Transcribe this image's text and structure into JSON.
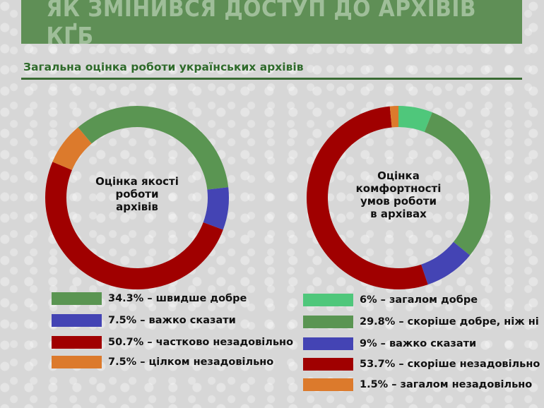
{
  "header": {
    "title": "ЯК ЗМІНИВСЯ ДОСТУП ДО АРХІВІВ КҐБ",
    "subtitle": "Загальна оцінка роботи українських архівів"
  },
  "chart_data": [
    {
      "type": "pie",
      "title": "Оцінка якості роботи архівів",
      "title_lines": [
        "Оцінка якості",
        "роботи",
        "архівів"
      ],
      "start_angle_deg": -40,
      "slices": [
        {
          "label": "34.3% – швидше добре",
          "value": 34.3,
          "color": "#5a9552"
        },
        {
          "label": "7.5% – важко сказати",
          "value": 7.5,
          "color": "#4444b4"
        },
        {
          "label": "50.7% – частково незадовільно",
          "value": 50.7,
          "color": "#a00000"
        },
        {
          "label": "7.5% – цілком незадовільно",
          "value": 7.5,
          "color": "#dc7a2c"
        }
      ]
    },
    {
      "type": "pie",
      "title": "Оцінка комфортності умов роботи в архівах",
      "title_lines": [
        "Оцінка",
        "комфортності",
        "умов роботи",
        "в архівах"
      ],
      "start_angle_deg": 0,
      "slices": [
        {
          "label": "6% – загалом добре",
          "value": 6,
          "color": "#4fc77b"
        },
        {
          "label": "29.8% – скоріше добре, ніж ні",
          "value": 29.8,
          "color": "#5a9552"
        },
        {
          "label": "9% – важко сказати",
          "value": 9,
          "color": "#4444b4"
        },
        {
          "label": "53.7% – скоріше незадовільно",
          "value": 53.7,
          "color": "#a00000"
        },
        {
          "label": "1.5% – загалом незадовільно",
          "value": 1.5,
          "color": "#dc7a2c"
        }
      ]
    }
  ]
}
